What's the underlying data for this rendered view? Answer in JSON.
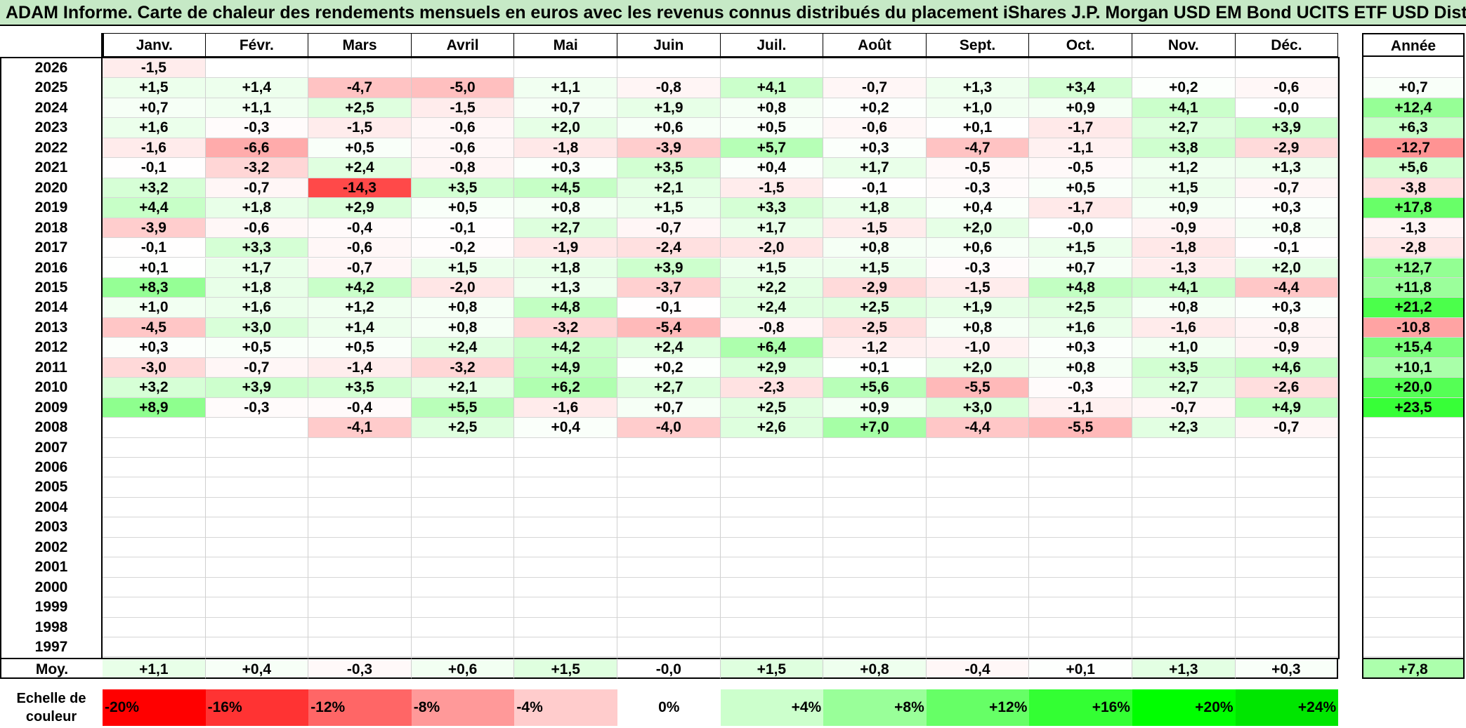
{
  "title": "ADAM Informe. Carte de chaleur des rendements mensuels en euros avec les revenus connus distribués du placement iShares J.P. Morgan USD EM Bond UCITS ETF USD Dist",
  "chart_data": {
    "type": "heatmap",
    "months": [
      "Janv.",
      "Févr.",
      "Mars",
      "Avril",
      "Mai",
      "Juin",
      "Juil.",
      "Août",
      "Sept.",
      "Oct.",
      "Nov.",
      "Déc."
    ],
    "annual_header": "Année",
    "rows": [
      {
        "year": "2026",
        "months": [
          "-1,5",
          "",
          "",
          "",
          "",
          "",
          "",
          "",
          "",
          "",
          "",
          ""
        ],
        "annual": ""
      },
      {
        "year": "2025",
        "months": [
          "+1,5",
          "+1,4",
          "-4,7",
          "-5,0",
          "+1,1",
          "-0,8",
          "+4,1",
          "-0,7",
          "+1,3",
          "+3,4",
          "+0,2",
          "-0,6"
        ],
        "annual": "+0,7"
      },
      {
        "year": "2024",
        "months": [
          "+0,7",
          "+1,1",
          "+2,5",
          "-1,5",
          "+0,7",
          "+1,9",
          "+0,8",
          "+0,2",
          "+1,0",
          "+0,9",
          "+4,1",
          "-0,0"
        ],
        "annual": "+12,4"
      },
      {
        "year": "2023",
        "months": [
          "+1,6",
          "-0,3",
          "-1,5",
          "-0,6",
          "+2,0",
          "+0,6",
          "+0,5",
          "-0,6",
          "+0,1",
          "-1,7",
          "+2,7",
          "+3,9"
        ],
        "annual": "+6,3"
      },
      {
        "year": "2022",
        "months": [
          "-1,6",
          "-6,6",
          "+0,5",
          "-0,6",
          "-1,8",
          "-3,9",
          "+5,7",
          "+0,3",
          "-4,7",
          "-1,1",
          "+3,8",
          "-2,9"
        ],
        "annual": "-12,7"
      },
      {
        "year": "2021",
        "months": [
          "-0,1",
          "-3,2",
          "+2,4",
          "-0,8",
          "+0,3",
          "+3,5",
          "+0,4",
          "+1,7",
          "-0,5",
          "-0,5",
          "+1,2",
          "+1,3"
        ],
        "annual": "+5,6"
      },
      {
        "year": "2020",
        "months": [
          "+3,2",
          "-0,7",
          "-14,3",
          "+3,5",
          "+4,5",
          "+2,1",
          "-1,5",
          "-0,1",
          "-0,3",
          "+0,5",
          "+1,5",
          "-0,7"
        ],
        "annual": "-3,8"
      },
      {
        "year": "2019",
        "months": [
          "+4,4",
          "+1,8",
          "+2,9",
          "+0,5",
          "+0,8",
          "+1,5",
          "+3,3",
          "+1,8",
          "+0,4",
          "-1,7",
          "+0,9",
          "+0,3"
        ],
        "annual": "+17,8"
      },
      {
        "year": "2018",
        "months": [
          "-3,9",
          "-0,6",
          "-0,4",
          "-0,1",
          "+2,7",
          "-0,7",
          "+1,7",
          "-1,5",
          "+2,0",
          "-0,0",
          "-0,9",
          "+0,8"
        ],
        "annual": "-1,3"
      },
      {
        "year": "2017",
        "months": [
          "-0,1",
          "+3,3",
          "-0,6",
          "-0,2",
          "-1,9",
          "-2,4",
          "-2,0",
          "+0,8",
          "+0,6",
          "+1,5",
          "-1,8",
          "-0,1"
        ],
        "annual": "-2,8"
      },
      {
        "year": "2016",
        "months": [
          "+0,1",
          "+1,7",
          "-0,7",
          "+1,5",
          "+1,8",
          "+3,9",
          "+1,5",
          "+1,5",
          "-0,3",
          "+0,7",
          "-1,3",
          "+2,0"
        ],
        "annual": "+12,7"
      },
      {
        "year": "2015",
        "months": [
          "+8,3",
          "+1,8",
          "+4,2",
          "-2,0",
          "+1,3",
          "-3,7",
          "+2,2",
          "-2,9",
          "-1,5",
          "+4,8",
          "+4,1",
          "-4,4"
        ],
        "annual": "+11,8"
      },
      {
        "year": "2014",
        "months": [
          "+1,0",
          "+1,6",
          "+1,2",
          "+0,8",
          "+4,8",
          "-0,1",
          "+2,4",
          "+2,5",
          "+1,9",
          "+2,5",
          "+0,8",
          "+0,3"
        ],
        "annual": "+21,2"
      },
      {
        "year": "2013",
        "months": [
          "-4,5",
          "+3,0",
          "+1,4",
          "+0,8",
          "-3,2",
          "-5,4",
          "-0,8",
          "-2,5",
          "+0,8",
          "+1,6",
          "-1,6",
          "-0,8"
        ],
        "annual": "-10,8"
      },
      {
        "year": "2012",
        "months": [
          "+0,3",
          "+0,5",
          "+0,5",
          "+2,4",
          "+4,2",
          "+2,4",
          "+6,4",
          "-1,2",
          "-1,0",
          "+0,3",
          "+1,0",
          "-0,9"
        ],
        "annual": "+15,4"
      },
      {
        "year": "2011",
        "months": [
          "-3,0",
          "-0,7",
          "-1,4",
          "-3,2",
          "+4,9",
          "+0,2",
          "+2,9",
          "+0,1",
          "+2,0",
          "+0,8",
          "+3,5",
          "+4,6"
        ],
        "annual": "+10,1"
      },
      {
        "year": "2010",
        "months": [
          "+3,2",
          "+3,9",
          "+3,5",
          "+2,1",
          "+6,2",
          "+2,7",
          "-2,3",
          "+5,6",
          "-5,5",
          "-0,3",
          "+2,7",
          "-2,6"
        ],
        "annual": "+20,0"
      },
      {
        "year": "2009",
        "months": [
          "+8,9",
          "-0,3",
          "-0,4",
          "+5,5",
          "-1,6",
          "+0,7",
          "+2,5",
          "+0,9",
          "+3,0",
          "-1,1",
          "-0,7",
          "+4,9"
        ],
        "annual": "+23,5"
      },
      {
        "year": "2008",
        "months": [
          "",
          "",
          "-4,1",
          "+2,5",
          "+0,4",
          "-4,0",
          "+2,6",
          "+7,0",
          "-4,4",
          "-5,5",
          "+2,3",
          "-0,7"
        ],
        "annual": ""
      },
      {
        "year": "2007",
        "months": [
          "",
          "",
          "",
          "",
          "",
          "",
          "",
          "",
          "",
          "",
          "",
          ""
        ],
        "annual": ""
      },
      {
        "year": "2006",
        "months": [
          "",
          "",
          "",
          "",
          "",
          "",
          "",
          "",
          "",
          "",
          "",
          ""
        ],
        "annual": ""
      },
      {
        "year": "2005",
        "months": [
          "",
          "",
          "",
          "",
          "",
          "",
          "",
          "",
          "",
          "",
          "",
          ""
        ],
        "annual": ""
      },
      {
        "year": "2004",
        "months": [
          "",
          "",
          "",
          "",
          "",
          "",
          "",
          "",
          "",
          "",
          "",
          ""
        ],
        "annual": ""
      },
      {
        "year": "2003",
        "months": [
          "",
          "",
          "",
          "",
          "",
          "",
          "",
          "",
          "",
          "",
          "",
          ""
        ],
        "annual": ""
      },
      {
        "year": "2002",
        "months": [
          "",
          "",
          "",
          "",
          "",
          "",
          "",
          "",
          "",
          "",
          "",
          ""
        ],
        "annual": ""
      },
      {
        "year": "2001",
        "months": [
          "",
          "",
          "",
          "",
          "",
          "",
          "",
          "",
          "",
          "",
          "",
          ""
        ],
        "annual": ""
      },
      {
        "year": "2000",
        "months": [
          "",
          "",
          "",
          "",
          "",
          "",
          "",
          "",
          "",
          "",
          "",
          ""
        ],
        "annual": ""
      },
      {
        "year": "1999",
        "months": [
          "",
          "",
          "",
          "",
          "",
          "",
          "",
          "",
          "",
          "",
          "",
          ""
        ],
        "annual": ""
      },
      {
        "year": "1998",
        "months": [
          "",
          "",
          "",
          "",
          "",
          "",
          "",
          "",
          "",
          "",
          "",
          ""
        ],
        "annual": ""
      },
      {
        "year": "1997",
        "months": [
          "",
          "",
          "",
          "",
          "",
          "",
          "",
          "",
          "",
          "",
          "",
          ""
        ],
        "annual": ""
      }
    ],
    "average": {
      "label": "Moy.",
      "months": [
        "+1,1",
        "+0,4",
        "-0,3",
        "+0,6",
        "+1,5",
        "-0,0",
        "+1,5",
        "+0,8",
        "-0,4",
        "+0,1",
        "+1,3",
        "+0,3"
      ],
      "annual": "+7,8"
    },
    "color_scale": {
      "label_line1": "Echelle de",
      "label_line2": "couleur",
      "stops": [
        {
          "label": "-20%",
          "color": "#ff0000"
        },
        {
          "label": "-16%",
          "color": "#ff3333"
        },
        {
          "label": "-12%",
          "color": "#ff6666"
        },
        {
          "label": "-8%",
          "color": "#ff9999"
        },
        {
          "label": "-4%",
          "color": "#ffcccc"
        },
        {
          "label": "0%",
          "color": "#ffffff"
        },
        {
          "label": "+4%",
          "color": "#ccffcc"
        },
        {
          "label": "+8%",
          "color": "#99ff99"
        },
        {
          "label": "+12%",
          "color": "#66ff66"
        },
        {
          "label": "+16%",
          "color": "#33ff33"
        },
        {
          "label": "+20%",
          "color": "#00ff00"
        },
        {
          "label": "+24%",
          "color": "#00e600"
        }
      ]
    }
  }
}
